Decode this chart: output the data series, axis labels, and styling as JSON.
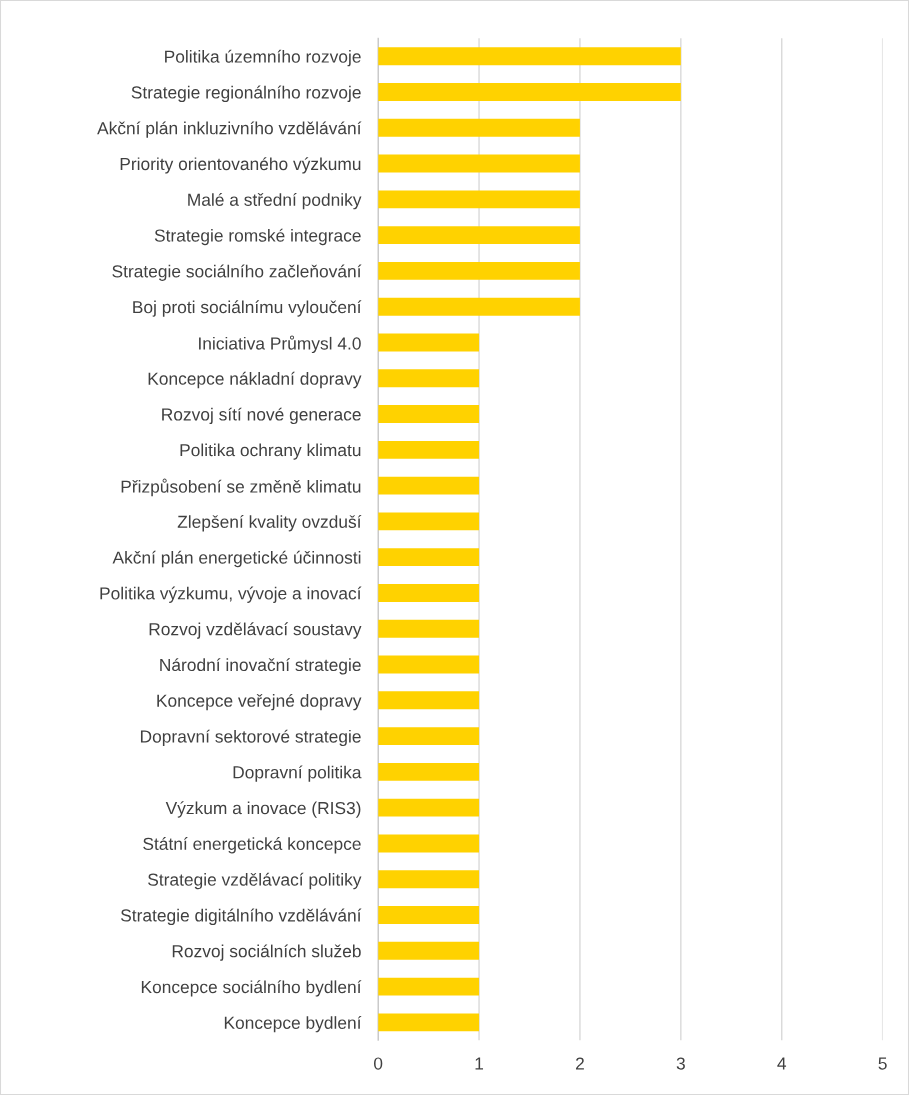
{
  "chart_data": {
    "type": "bar",
    "orientation": "horizontal",
    "categories": [
      "Politika územního rozvoje",
      "Strategie regionálního rozvoje",
      "Akční plán inkluzivního vzdělávání",
      "Priority orientovaného výzkumu",
      "Malé a střední podniky",
      "Strategie romské integrace",
      "Strategie sociálního začleňování",
      "Boj proti sociálnímu vyloučení",
      "Iniciativa Průmysl 4.0",
      "Koncepce nákladní dopravy",
      "Rozvoj sítí nové generace",
      "Politika ochrany klimatu",
      "Přizpůsobení se změně klimatu",
      "Zlepšení kvality ovzduší",
      "Akční plán energetické účinnosti",
      "Politika výzkumu, vývoje a inovací",
      "Rozvoj vzdělávací soustavy",
      "Národní inovační strategie",
      "Koncepce veřejné dopravy",
      "Dopravní sektorové strategie",
      "Dopravní politika",
      "Výzkum a inovace (RIS3)",
      "Státní energetická koncepce",
      "Strategie vzdělávací politiky",
      "Strategie digitálního vzdělávání",
      "Rozvoj sociálních služeb",
      "Koncepce sociálního bydlení",
      "Koncepce bydlení"
    ],
    "values": [
      3,
      3,
      2,
      2,
      2,
      2,
      2,
      2,
      1,
      1,
      1,
      1,
      1,
      1,
      1,
      1,
      1,
      1,
      1,
      1,
      1,
      1,
      1,
      1,
      1,
      1,
      1,
      1
    ],
    "color": "#ffd200",
    "xlim": [
      0,
      5
    ],
    "xticks": [
      0,
      1,
      2,
      3,
      4,
      5
    ],
    "grid": "x"
  }
}
